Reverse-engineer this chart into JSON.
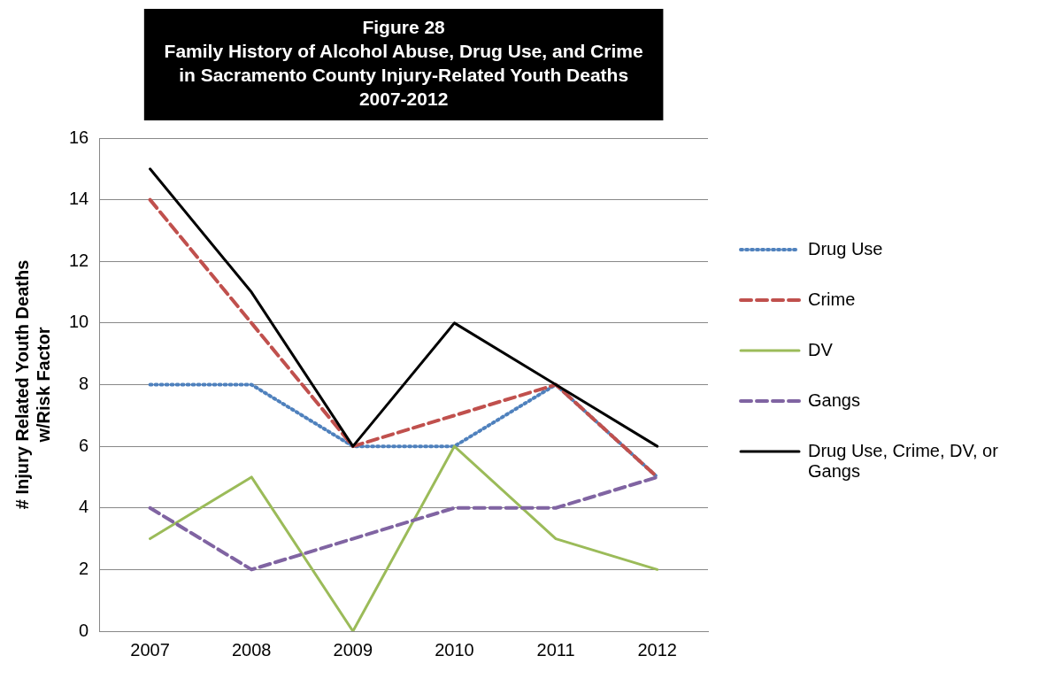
{
  "chart_data": {
    "type": "line",
    "title": [
      "Figure 28",
      "Family History of Alcohol Abuse, Drug Use, and Crime",
      "in Sacramento County Injury-Related Youth Deaths",
      "2007-2012"
    ],
    "ylabel": [
      "# Injury Related Youth Deaths",
      "w/Risk Factor"
    ],
    "categories": [
      "2007",
      "2008",
      "2009",
      "2010",
      "2011",
      "2012"
    ],
    "series": [
      {
        "name": "Drug Use",
        "color": "#4f81bd",
        "line_style": "dotted",
        "values": [
          8,
          8,
          6,
          6,
          8,
          5
        ]
      },
      {
        "name": "Crime",
        "color": "#c0504d",
        "line_style": "dashed",
        "values": [
          14,
          10,
          6,
          7,
          8,
          5
        ]
      },
      {
        "name": "DV",
        "color": "#9bbb59",
        "line_style": "solid",
        "values": [
          3,
          5,
          0,
          6,
          3,
          2
        ]
      },
      {
        "name": "Gangs",
        "color": "#8064a2",
        "line_style": "dashed",
        "values": [
          4,
          2,
          3,
          4,
          4,
          5
        ]
      },
      {
        "name": "Drug Use, Crime, DV, or Gangs",
        "color": "#000000",
        "line_style": "solid",
        "values": [
          15,
          11,
          6,
          10,
          8,
          6
        ]
      }
    ],
    "ylim": [
      0,
      16
    ],
    "yticks": [
      0,
      2,
      4,
      6,
      8,
      10,
      12,
      14,
      16
    ],
    "grid": "y",
    "legend": "right",
    "marker": "none"
  }
}
